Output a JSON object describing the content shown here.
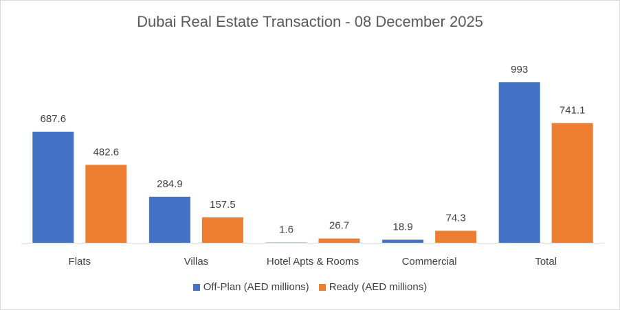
{
  "chart_data": {
    "type": "bar",
    "title": "Dubai Real Estate Transaction - 08 December 2025",
    "categories": [
      "Flats",
      "Villas",
      "Hotel Apts & Rooms",
      "Commercial",
      "Total"
    ],
    "series": [
      {
        "name": "Off-Plan (AED millions)",
        "color": "#4472c4",
        "values": [
          687.6,
          284.9,
          1.6,
          18.9,
          993
        ],
        "labels": [
          "687.6",
          "284.9",
          "1.6",
          "18.9",
          "993"
        ]
      },
      {
        "name": "Ready (AED millions)",
        "color": "#ed7d31",
        "values": [
          482.6,
          157.5,
          26.7,
          74.3,
          741.1
        ],
        "labels": [
          "482.6",
          "157.5",
          "26.7",
          "74.3",
          "741.1"
        ]
      }
    ],
    "ylim": [
      0,
      1010
    ],
    "grid": false,
    "legend_position": "bottom"
  }
}
